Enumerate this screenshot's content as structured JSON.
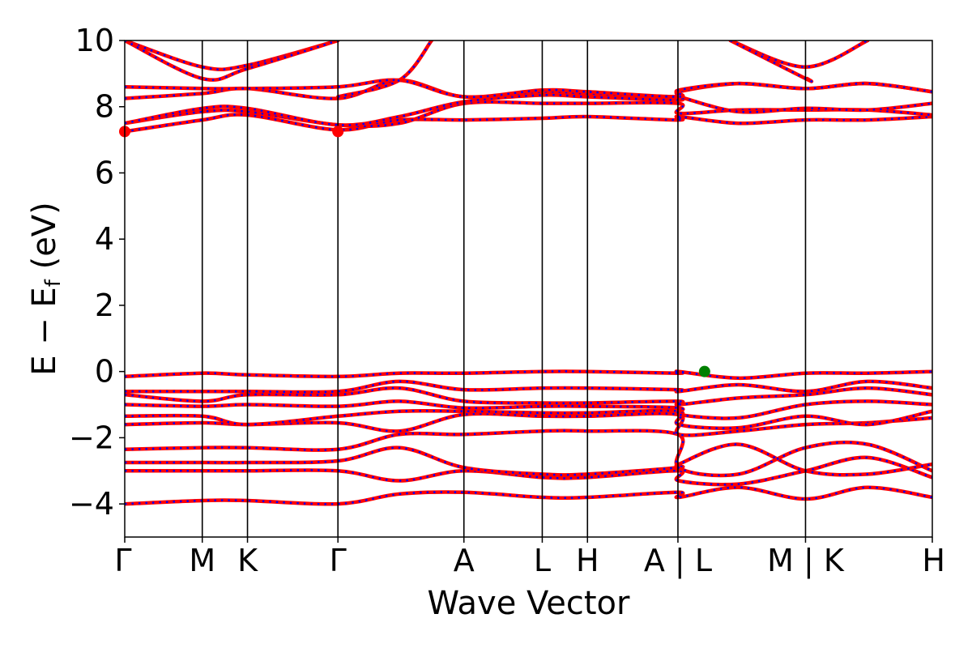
{
  "chart_data": {
    "type": "line",
    "title": "",
    "xlabel": "Wave Vector",
    "ylabel": "E − E",
    "ylabel_sub": "f",
    "ylabel_unit": " (eV)",
    "ylim": [
      -5,
      10
    ],
    "yticks": [
      -4,
      -2,
      0,
      2,
      4,
      6,
      8,
      10
    ],
    "ytick_labels": [
      "−4",
      "−2",
      "0",
      "2",
      "4",
      "6",
      "8",
      "10"
    ],
    "xlim": [
      0,
      10
    ],
    "high_symmetry_points": [
      {
        "label": "Γ",
        "x": 0.0
      },
      {
        "label": "M",
        "x": 0.96
      },
      {
        "label": "K",
        "x": 1.52
      },
      {
        "label": "Γ",
        "x": 2.64
      },
      {
        "label": "A",
        "x": 4.2
      },
      {
        "label": "L",
        "x": 5.17
      },
      {
        "label": "H",
        "x": 5.73
      },
      {
        "label": "A | L",
        "x": 6.85
      },
      {
        "label": "M | K",
        "x": 8.43
      },
      {
        "label": "H",
        "x": 10.0
      }
    ],
    "grid": false,
    "legend": "none",
    "series_styles": [
      {
        "style": "solid",
        "color": "#ff0000"
      },
      {
        "style": "dotted",
        "color": "#0000ff"
      }
    ],
    "markers": [
      {
        "x": 0.0,
        "y": 7.25,
        "color": "#ff0000"
      },
      {
        "x": 2.64,
        "y": 7.25,
        "color": "#ff0000"
      },
      {
        "x": 7.18,
        "y": 0.0,
        "color": "#008000"
      }
    ],
    "bands": [
      [
        [
          0,
          -4.0
        ],
        [
          0.96,
          -3.9
        ],
        [
          1.52,
          -3.9
        ],
        [
          2.64,
          -4.0
        ],
        [
          3.4,
          -3.7
        ],
        [
          4.2,
          -3.65
        ],
        [
          5.17,
          -3.8
        ],
        [
          5.73,
          -3.8
        ],
        [
          6.85,
          -3.65
        ],
        [
          6.86,
          -3.8
        ],
        [
          7.6,
          -3.5
        ],
        [
          8.43,
          -3.85
        ],
        [
          9.2,
          -3.5
        ],
        [
          10.0,
          -3.8
        ]
      ],
      [
        [
          0,
          -3.0
        ],
        [
          0.96,
          -3.0
        ],
        [
          1.52,
          -3.0
        ],
        [
          2.64,
          -3.0
        ],
        [
          3.4,
          -3.3
        ],
        [
          4.2,
          -3.0
        ],
        [
          5.17,
          -3.2
        ],
        [
          5.73,
          -3.2
        ],
        [
          6.85,
          -3.0
        ],
        [
          6.86,
          -3.3
        ],
        [
          7.6,
          -3.4
        ],
        [
          8.43,
          -3.0
        ],
        [
          9.2,
          -2.6
        ],
        [
          10.0,
          -3.2
        ]
      ],
      [
        [
          0,
          -2.75
        ],
        [
          0.96,
          -2.75
        ],
        [
          1.52,
          -2.75
        ],
        [
          2.64,
          -2.7
        ],
        [
          3.4,
          -2.3
        ],
        [
          4.2,
          -2.9
        ],
        [
          5.17,
          -3.1
        ],
        [
          5.73,
          -3.1
        ],
        [
          6.85,
          -2.9
        ],
        [
          6.86,
          -2.8
        ],
        [
          7.6,
          -2.2
        ],
        [
          8.43,
          -3.0
        ],
        [
          9.2,
          -3.1
        ],
        [
          10.0,
          -2.8
        ]
      ],
      [
        [
          0,
          -2.35
        ],
        [
          0.96,
          -2.3
        ],
        [
          1.52,
          -2.3
        ],
        [
          2.64,
          -2.35
        ],
        [
          3.4,
          -1.9
        ],
        [
          4.2,
          -1.9
        ],
        [
          5.17,
          -1.8
        ],
        [
          5.73,
          -1.8
        ],
        [
          6.85,
          -1.9
        ],
        [
          6.86,
          -2.9
        ],
        [
          7.6,
          -3.1
        ],
        [
          8.43,
          -2.3
        ],
        [
          9.2,
          -2.2
        ],
        [
          10.0,
          -3.0
        ]
      ],
      [
        [
          0,
          -1.6
        ],
        [
          0.96,
          -1.55
        ],
        [
          1.52,
          -1.6
        ],
        [
          2.64,
          -1.55
        ],
        [
          3.4,
          -1.8
        ],
        [
          4.2,
          -1.3
        ],
        [
          5.17,
          -1.35
        ],
        [
          5.73,
          -1.35
        ],
        [
          6.85,
          -1.3
        ],
        [
          6.86,
          -1.9
        ],
        [
          7.6,
          -1.8
        ],
        [
          8.43,
          -1.6
        ],
        [
          9.2,
          -1.55
        ],
        [
          10.0,
          -1.4
        ]
      ],
      [
        [
          0,
          -1.35
        ],
        [
          0.96,
          -1.35
        ],
        [
          1.52,
          -1.6
        ],
        [
          2.64,
          -1.35
        ],
        [
          3.4,
          -1.2
        ],
        [
          4.2,
          -1.2
        ],
        [
          5.17,
          -1.25
        ],
        [
          5.73,
          -1.25
        ],
        [
          6.85,
          -1.2
        ],
        [
          6.86,
          -1.6
        ],
        [
          7.6,
          -1.7
        ],
        [
          8.43,
          -1.35
        ],
        [
          9.2,
          -1.6
        ],
        [
          10.0,
          -1.2
        ]
      ],
      [
        [
          0,
          -1.0
        ],
        [
          0.96,
          -1.05
        ],
        [
          1.52,
          -1.0
        ],
        [
          2.64,
          -1.05
        ],
        [
          3.4,
          -0.9
        ],
        [
          4.2,
          -1.1
        ],
        [
          5.17,
          -1.05
        ],
        [
          5.73,
          -1.05
        ],
        [
          6.85,
          -1.1
        ],
        [
          6.86,
          -1.3
        ],
        [
          7.6,
          -1.4
        ],
        [
          8.43,
          -1.0
        ],
        [
          9.2,
          -0.9
        ],
        [
          10.0,
          -1.0
        ]
      ],
      [
        [
          0,
          -0.7
        ],
        [
          0.96,
          -0.9
        ],
        [
          1.52,
          -0.7
        ],
        [
          2.64,
          -0.7
        ],
        [
          3.4,
          -0.5
        ],
        [
          4.2,
          -0.9
        ],
        [
          5.17,
          -0.95
        ],
        [
          5.73,
          -0.95
        ],
        [
          6.85,
          -0.9
        ],
        [
          6.86,
          -1.0
        ],
        [
          7.6,
          -0.8
        ],
        [
          8.43,
          -0.7
        ],
        [
          9.2,
          -0.5
        ],
        [
          10.0,
          -0.7
        ]
      ],
      [
        [
          0,
          -0.6
        ],
        [
          0.96,
          -0.6
        ],
        [
          1.52,
          -0.6
        ],
        [
          2.64,
          -0.6
        ],
        [
          3.4,
          -0.3
        ],
        [
          4.2,
          -0.55
        ],
        [
          5.17,
          -0.5
        ],
        [
          5.73,
          -0.5
        ],
        [
          6.85,
          -0.55
        ],
        [
          6.86,
          -0.6
        ],
        [
          7.6,
          -0.4
        ],
        [
          8.43,
          -0.6
        ],
        [
          9.2,
          -0.3
        ],
        [
          10.0,
          -0.5
        ]
      ],
      [
        [
          0,
          -0.15
        ],
        [
          0.96,
          -0.05
        ],
        [
          1.52,
          -0.1
        ],
        [
          2.64,
          -0.15
        ],
        [
          3.4,
          -0.05
        ],
        [
          4.2,
          -0.05
        ],
        [
          5.17,
          0.0
        ],
        [
          5.73,
          0.0
        ],
        [
          6.85,
          -0.05
        ],
        [
          6.86,
          0.0
        ],
        [
          7.6,
          -0.2
        ],
        [
          8.43,
          -0.05
        ],
        [
          9.2,
          -0.05
        ],
        [
          10.0,
          0.0
        ]
      ],
      [
        [
          0,
          7.25
        ],
        [
          0.96,
          7.6
        ],
        [
          1.52,
          7.75
        ],
        [
          2.64,
          7.3
        ],
        [
          3.4,
          7.6
        ],
        [
          4.2,
          7.6
        ],
        [
          5.17,
          7.65
        ],
        [
          5.73,
          7.7
        ],
        [
          6.85,
          7.6
        ],
        [
          6.86,
          7.7
        ],
        [
          7.6,
          7.5
        ],
        [
          8.43,
          7.6
        ],
        [
          9.2,
          7.6
        ],
        [
          10.0,
          7.7
        ]
      ],
      [
        [
          0,
          7.5
        ],
        [
          0.96,
          7.85
        ],
        [
          1.52,
          7.85
        ],
        [
          2.64,
          7.45
        ],
        [
          3.4,
          7.5
        ],
        [
          4.2,
          8.1
        ],
        [
          5.17,
          8.1
        ],
        [
          5.73,
          8.1
        ],
        [
          6.85,
          8.1
        ],
        [
          6.86,
          7.8
        ],
        [
          7.6,
          7.9
        ],
        [
          8.43,
          7.9
        ],
        [
          9.2,
          7.9
        ],
        [
          10.0,
          7.75
        ]
      ],
      [
        [
          0,
          7.5
        ],
        [
          0.96,
          7.95
        ],
        [
          1.52,
          7.95
        ],
        [
          2.64,
          7.45
        ],
        [
          3.4,
          7.7
        ],
        [
          4.2,
          8.15
        ],
        [
          5.17,
          8.35
        ],
        [
          5.73,
          8.3
        ],
        [
          6.85,
          8.2
        ],
        [
          6.86,
          8.3
        ],
        [
          7.6,
          7.85
        ],
        [
          8.43,
          7.95
        ],
        [
          9.2,
          7.9
        ],
        [
          10.0,
          8.1
        ]
      ],
      [
        [
          0,
          8.25
        ],
        [
          0.96,
          8.4
        ],
        [
          1.52,
          8.55
        ],
        [
          2.64,
          8.25
        ],
        [
          3.4,
          8.8
        ],
        [
          4.2,
          8.3
        ],
        [
          5.17,
          8.45
        ],
        [
          5.73,
          8.4
        ],
        [
          6.85,
          8.3
        ],
        [
          6.86,
          8.45
        ],
        [
          7.6,
          8.7
        ],
        [
          8.43,
          8.55
        ],
        [
          9.2,
          8.7
        ],
        [
          10.0,
          8.45
        ]
      ],
      [
        [
          0,
          8.6
        ],
        [
          0.96,
          8.55
        ],
        [
          1.52,
          8.55
        ],
        [
          2.64,
          8.6
        ],
        [
          3.4,
          8.8
        ],
        [
          4.2,
          8.3
        ],
        [
          5.17,
          8.5
        ],
        [
          5.73,
          8.45
        ],
        [
          6.85,
          8.3
        ],
        [
          6.86,
          8.5
        ],
        [
          7.6,
          8.7
        ],
        [
          8.43,
          8.55
        ],
        [
          9.2,
          8.7
        ],
        [
          10.0,
          8.45
        ]
      ],
      [
        [
          0,
          10.0
        ],
        [
          0.96,
          9.2
        ],
        [
          1.52,
          9.25
        ],
        [
          2.64,
          10.0
        ]
      ],
      [
        [
          0,
          10.0
        ],
        [
          0.96,
          8.85
        ],
        [
          1.52,
          9.15
        ],
        [
          2.64,
          10.0
        ]
      ],
      [
        [
          2.64,
          8.3
        ],
        [
          3.4,
          8.8
        ],
        [
          3.8,
          10.0
        ]
      ],
      [
        [
          7.5,
          10.0
        ],
        [
          8.43,
          9.2
        ],
        [
          9.2,
          10.0
        ]
      ],
      [
        [
          7.5,
          10.0
        ],
        [
          8.43,
          8.85
        ],
        [
          8.45,
          8.85
        ]
      ]
    ]
  }
}
